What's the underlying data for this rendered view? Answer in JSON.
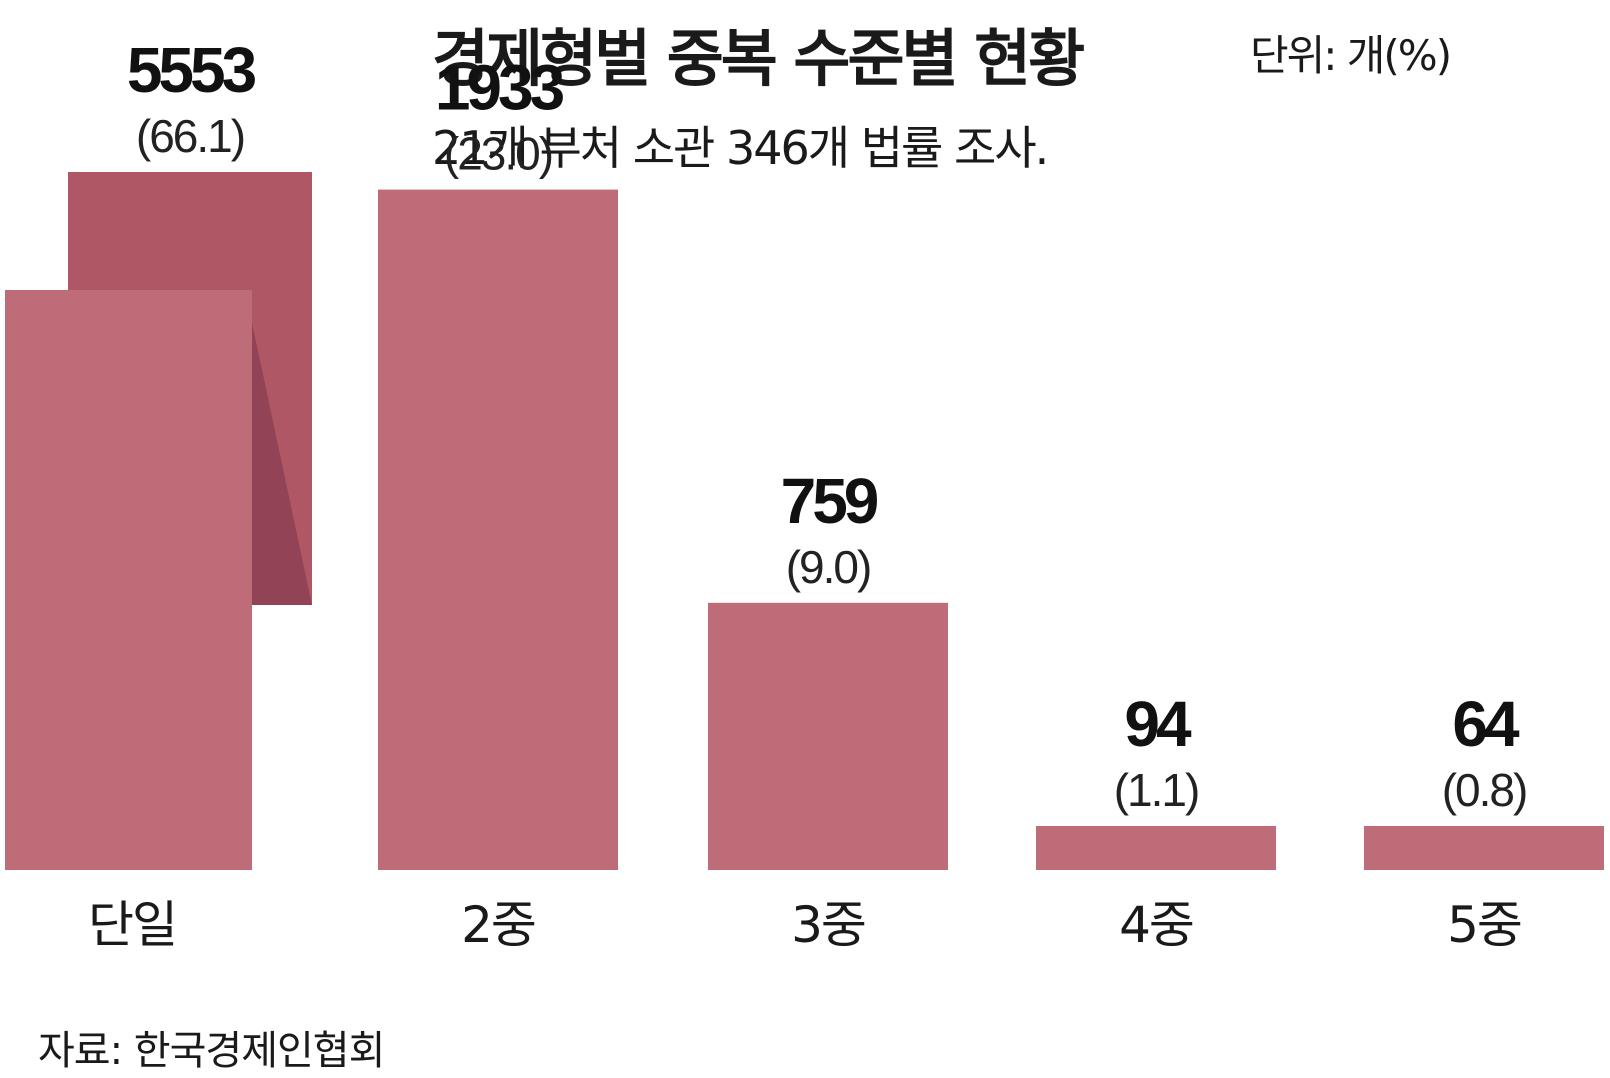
{
  "title": "경제형벌 중복 수준별 현황",
  "unit": "단위: 개(%)",
  "subtitle": "21개 부처 소관 346개 법률 조사.",
  "source": "자료: 한국경제인협회",
  "colors": {
    "bar": "#be6d78",
    "bar_back": "#b05766",
    "bar_fold": "#924356"
  },
  "chart_data": {
    "type": "bar",
    "categories": [
      "단일",
      "2중",
      "3중",
      "4중",
      "5중"
    ],
    "values": [
      5553,
      1933,
      759,
      94,
      64
    ],
    "percent_labels": [
      "(66.1)",
      "(23.0)",
      "(9.0)",
      "(1.1)",
      "(0.8)"
    ],
    "value_labels": [
      "5553",
      "1933",
      "759",
      "94",
      "64"
    ],
    "title": "경제형벌 중복 수준별 현황",
    "xlabel": "",
    "ylabel": "",
    "grid": false,
    "legend": "none"
  }
}
